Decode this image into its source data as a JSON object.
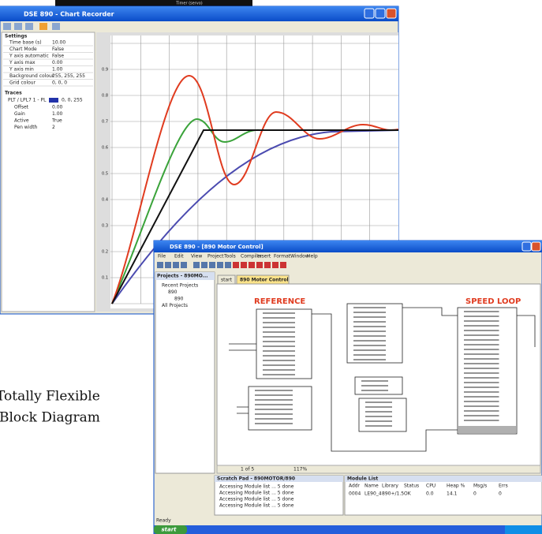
{
  "top_bar": {
    "title": "Timer (servo)"
  },
  "chart_window": {
    "title": "DSE 890 - Chart Recorder",
    "settings_header": "Settings",
    "properties": [
      [
        "Time base (s)",
        "10.00"
      ],
      [
        "Chart Mode",
        "False"
      ],
      [
        "Y axis automatic",
        "False"
      ],
      [
        "Y axis max",
        "0.00"
      ],
      [
        "Y axis min",
        "1.00"
      ],
      [
        "Background colour",
        "255, 255, 255"
      ],
      [
        "Grid colour",
        "0, 0, 0"
      ]
    ],
    "trace_header": "Traces",
    "trace_name": "PLT / LPL7 1 - PL",
    "trace_color": "0, 0, 255",
    "trace_properties": [
      [
        "Offset",
        "0.00"
      ],
      [
        "Gain",
        "1.00"
      ],
      [
        "Active",
        "True"
      ],
      [
        "Pen width",
        "2"
      ]
    ],
    "y_ticks": [
      "0.9",
      "0.8",
      "0.7",
      "0.6",
      "0.5",
      "0.4",
      "0.3",
      "0.2",
      "0.1"
    ]
  },
  "diagram_window": {
    "title": "DSE 890 - [890 Motor Control]",
    "menu": [
      "File",
      "Edit",
      "View",
      "Project",
      "Tools",
      "Compiler",
      "Insert",
      "Format",
      "Window",
      "Help"
    ],
    "tree_header": "Projects - 890MO...",
    "tree": [
      "Recent Projects",
      "890",
      "890",
      "All Projects"
    ],
    "tabs": [
      "start",
      "890 Motor Control"
    ],
    "diagram_labels": [
      "REFERENCE",
      "SPEED LOOP"
    ],
    "page": "1 of 5",
    "zoom": "117%",
    "scratch_pad": {
      "title": "Scratch Pad - 890MOTOR/890",
      "rows": [
        "Accessing Module list ... 5 done",
        "Accessing Module list ... 5 done",
        "Accessing Module list ... 5 done",
        "Accessing Module list ... 5 done"
      ]
    },
    "module_list": {
      "title": "Module List",
      "headers": [
        "Addr",
        "Name",
        "Library",
        "Status",
        "CPU",
        "Heap %",
        "Msg/s",
        "Errs"
      ],
      "row": [
        "0004",
        "LE90_4",
        "890+/1.5",
        "OK",
        "0.0",
        "14.1",
        "0",
        "0"
      ]
    },
    "status": "Ready",
    "start_button": "start"
  },
  "caption": [
    "Totally Flexible",
    "Block Diagram"
  ]
}
